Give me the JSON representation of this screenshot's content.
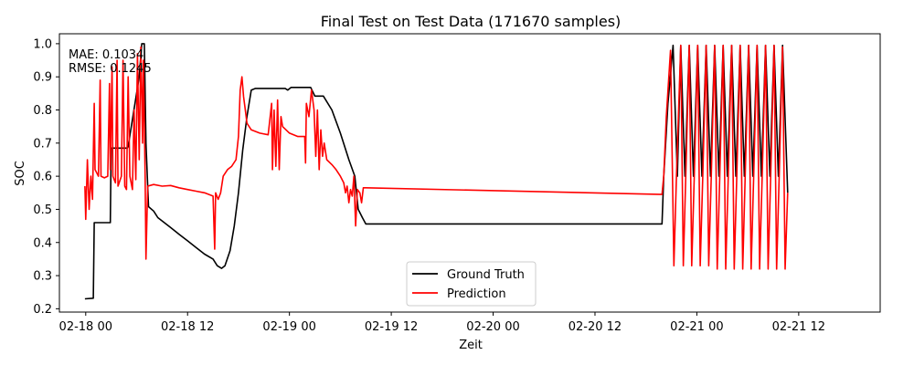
{
  "chart_data": {
    "type": "line",
    "title": "Final Test on Test Data (171670 samples)",
    "xlabel": "Zeit",
    "ylabel": "SOC",
    "x_unit": "hours",
    "xlim": [
      -3.1,
      93.6
    ],
    "ylim": [
      0.19,
      1.03
    ],
    "x_ticks": [
      {
        "label": "02-18 00",
        "value": 0
      },
      {
        "label": "02-18 12",
        "value": 12
      },
      {
        "label": "02-19 00",
        "value": 24
      },
      {
        "label": "02-19 12",
        "value": 36
      },
      {
        "label": "02-20 00",
        "value": 48
      },
      {
        "label": "02-20 12",
        "value": 60
      },
      {
        "label": "02-21 00",
        "value": 72
      },
      {
        "label": "02-21 12",
        "value": 84
      }
    ],
    "y_ticks": [
      {
        "label": "0.2",
        "value": 0.2
      },
      {
        "label": "0.3",
        "value": 0.3
      },
      {
        "label": "0.4",
        "value": 0.4
      },
      {
        "label": "0.5",
        "value": 0.5
      },
      {
        "label": "0.6",
        "value": 0.6
      },
      {
        "label": "0.7",
        "value": 0.7
      },
      {
        "label": "0.8",
        "value": 0.8
      },
      {
        "label": "0.9",
        "value": 0.9
      },
      {
        "label": "1.0",
        "value": 1.0
      }
    ],
    "grid": false,
    "legend_position": "lower center",
    "metrics": {
      "mae_text": "MAE: 0.1034",
      "rmse_text": "RMSE: 0.1245"
    },
    "series": [
      {
        "name": "Ground Truth",
        "color": "#000000",
        "points": [
          [
            -0.1,
            0.23
          ],
          [
            0.9,
            0.232
          ],
          [
            1.0,
            0.46
          ],
          [
            2.9,
            0.46
          ],
          [
            3.0,
            0.685
          ],
          [
            4.9,
            0.685
          ],
          [
            5.0,
            0.69
          ],
          [
            6.3,
            0.9
          ],
          [
            6.6,
            1.0
          ],
          [
            6.9,
            1.0
          ],
          [
            7.1,
            0.7
          ],
          [
            7.4,
            0.508
          ],
          [
            8.0,
            0.495
          ],
          [
            8.5,
            0.475
          ],
          [
            10.0,
            0.445
          ],
          [
            11.0,
            0.425
          ],
          [
            12.0,
            0.405
          ],
          [
            13.0,
            0.385
          ],
          [
            14.0,
            0.365
          ],
          [
            15.0,
            0.35
          ],
          [
            15.5,
            0.33
          ],
          [
            16.0,
            0.322
          ],
          [
            16.4,
            0.33
          ],
          [
            17.0,
            0.375
          ],
          [
            17.5,
            0.45
          ],
          [
            18.0,
            0.55
          ],
          [
            18.5,
            0.68
          ],
          [
            19.0,
            0.78
          ],
          [
            19.5,
            0.86
          ],
          [
            20.0,
            0.865
          ],
          [
            23.5,
            0.865
          ],
          [
            23.8,
            0.86
          ],
          [
            24.2,
            0.868
          ],
          [
            26.5,
            0.868
          ],
          [
            27.0,
            0.842
          ],
          [
            28.0,
            0.842
          ],
          [
            29.0,
            0.8
          ],
          [
            30.0,
            0.73
          ],
          [
            31.0,
            0.65
          ],
          [
            31.7,
            0.6
          ],
          [
            32.1,
            0.5
          ],
          [
            32.6,
            0.475
          ],
          [
            33.0,
            0.456
          ],
          [
            67.9,
            0.456
          ],
          [
            68.1,
            0.6
          ],
          [
            68.6,
            0.82
          ],
          [
            69.2,
            0.995
          ],
          [
            69.7,
            0.6
          ],
          [
            70.1,
            0.995
          ],
          [
            70.6,
            0.6
          ],
          [
            71.1,
            0.995
          ],
          [
            71.6,
            0.6
          ],
          [
            72.1,
            0.995
          ],
          [
            72.6,
            0.6
          ],
          [
            73.1,
            0.995
          ],
          [
            73.6,
            0.6
          ],
          [
            74.1,
            0.995
          ],
          [
            74.6,
            0.6
          ],
          [
            75.1,
            0.995
          ],
          [
            75.6,
            0.6
          ],
          [
            76.1,
            0.995
          ],
          [
            76.6,
            0.6
          ],
          [
            77.1,
            0.995
          ],
          [
            77.6,
            0.6
          ],
          [
            78.1,
            0.995
          ],
          [
            78.6,
            0.6
          ],
          [
            79.1,
            0.995
          ],
          [
            79.6,
            0.6
          ],
          [
            80.1,
            0.995
          ],
          [
            80.6,
            0.6
          ],
          [
            81.1,
            0.995
          ],
          [
            81.6,
            0.6
          ],
          [
            82.1,
            0.995
          ],
          [
            82.7,
            0.55
          ]
        ]
      },
      {
        "name": "Prediction",
        "color": "#ff0000",
        "points": [
          [
            -0.1,
            0.57
          ],
          [
            0.0,
            0.47
          ],
          [
            0.2,
            0.65
          ],
          [
            0.4,
            0.5
          ],
          [
            0.6,
            0.6
          ],
          [
            0.8,
            0.53
          ],
          [
            1.0,
            0.82
          ],
          [
            1.1,
            0.62
          ],
          [
            1.3,
            0.61
          ],
          [
            1.5,
            0.6
          ],
          [
            1.7,
            0.89
          ],
          [
            1.8,
            0.6
          ],
          [
            2.2,
            0.595
          ],
          [
            2.6,
            0.6
          ],
          [
            2.8,
            0.88
          ],
          [
            2.9,
            0.62
          ],
          [
            3.1,
            0.93
          ],
          [
            3.2,
            0.6
          ],
          [
            3.5,
            0.58
          ],
          [
            3.7,
            0.95
          ],
          [
            3.8,
            0.57
          ],
          [
            4.2,
            0.6
          ],
          [
            4.4,
            0.95
          ],
          [
            4.6,
            0.57
          ],
          [
            4.8,
            0.56
          ],
          [
            5.0,
            0.9
          ],
          [
            5.2,
            0.6
          ],
          [
            5.5,
            0.56
          ],
          [
            5.7,
            0.8
          ],
          [
            5.9,
            0.59
          ],
          [
            6.1,
            0.97
          ],
          [
            6.3,
            0.65
          ],
          [
            6.5,
            0.99
          ],
          [
            6.7,
            0.7
          ],
          [
            6.8,
            0.95
          ],
          [
            7.0,
            0.6
          ],
          [
            7.1,
            0.35
          ],
          [
            7.3,
            0.57
          ],
          [
            8.0,
            0.575
          ],
          [
            9.0,
            0.57
          ],
          [
            10.0,
            0.572
          ],
          [
            11.0,
            0.565
          ],
          [
            12.0,
            0.56
          ],
          [
            13.0,
            0.555
          ],
          [
            14.0,
            0.55
          ],
          [
            15.0,
            0.54
          ],
          [
            15.2,
            0.38
          ],
          [
            15.3,
            0.55
          ],
          [
            15.6,
            0.53
          ],
          [
            15.9,
            0.55
          ],
          [
            16.2,
            0.6
          ],
          [
            16.7,
            0.62
          ],
          [
            17.2,
            0.63
          ],
          [
            17.7,
            0.65
          ],
          [
            18.0,
            0.72
          ],
          [
            18.2,
            0.86
          ],
          [
            18.4,
            0.9
          ],
          [
            18.6,
            0.84
          ],
          [
            18.8,
            0.8
          ],
          [
            19.0,
            0.76
          ],
          [
            19.5,
            0.74
          ],
          [
            20.5,
            0.73
          ],
          [
            21.5,
            0.725
          ],
          [
            21.9,
            0.82
          ],
          [
            22.0,
            0.62
          ],
          [
            22.2,
            0.8
          ],
          [
            22.4,
            0.63
          ],
          [
            22.6,
            0.83
          ],
          [
            22.8,
            0.62
          ],
          [
            23.0,
            0.78
          ],
          [
            23.2,
            0.75
          ],
          [
            24.0,
            0.73
          ],
          [
            25.0,
            0.72
          ],
          [
            25.8,
            0.72
          ],
          [
            25.9,
            0.64
          ],
          [
            26.0,
            0.82
          ],
          [
            26.3,
            0.78
          ],
          [
            26.6,
            0.86
          ],
          [
            26.9,
            0.8
          ],
          [
            27.1,
            0.66
          ],
          [
            27.3,
            0.8
          ],
          [
            27.5,
            0.62
          ],
          [
            27.7,
            0.74
          ],
          [
            27.9,
            0.66
          ],
          [
            28.1,
            0.7
          ],
          [
            28.4,
            0.65
          ],
          [
            29.0,
            0.635
          ],
          [
            29.5,
            0.62
          ],
          [
            30.0,
            0.6
          ],
          [
            30.4,
            0.58
          ],
          [
            30.6,
            0.55
          ],
          [
            30.8,
            0.57
          ],
          [
            31.0,
            0.52
          ],
          [
            31.2,
            0.56
          ],
          [
            31.4,
            0.54
          ],
          [
            31.6,
            0.6
          ],
          [
            31.8,
            0.45
          ],
          [
            32.0,
            0.56
          ],
          [
            32.3,
            0.55
          ],
          [
            32.5,
            0.52
          ],
          [
            32.7,
            0.565
          ],
          [
            33.0,
            0.565
          ],
          [
            67.9,
            0.545
          ],
          [
            68.1,
            0.6
          ],
          [
            68.4,
            0.78
          ],
          [
            68.9,
            0.98
          ],
          [
            69.3,
            0.33
          ],
          [
            69.6,
            0.6
          ],
          [
            70.1,
            0.995
          ],
          [
            70.4,
            0.33
          ],
          [
            70.7,
            0.6
          ],
          [
            71.1,
            0.995
          ],
          [
            71.4,
            0.33
          ],
          [
            71.7,
            0.6
          ],
          [
            72.1,
            0.995
          ],
          [
            72.4,
            0.33
          ],
          [
            72.7,
            0.6
          ],
          [
            73.1,
            0.995
          ],
          [
            73.4,
            0.33
          ],
          [
            73.7,
            0.6
          ],
          [
            74.1,
            0.995
          ],
          [
            74.4,
            0.32
          ],
          [
            74.7,
            0.6
          ],
          [
            75.1,
            0.995
          ],
          [
            75.4,
            0.32
          ],
          [
            75.7,
            0.6
          ],
          [
            76.1,
            0.995
          ],
          [
            76.4,
            0.32
          ],
          [
            76.7,
            0.6
          ],
          [
            77.1,
            0.995
          ],
          [
            77.4,
            0.32
          ],
          [
            77.7,
            0.6
          ],
          [
            78.1,
            0.995
          ],
          [
            78.4,
            0.32
          ],
          [
            78.7,
            0.6
          ],
          [
            79.1,
            0.995
          ],
          [
            79.4,
            0.32
          ],
          [
            79.7,
            0.6
          ],
          [
            80.1,
            0.995
          ],
          [
            80.4,
            0.32
          ],
          [
            80.7,
            0.6
          ],
          [
            81.1,
            0.995
          ],
          [
            81.4,
            0.32
          ],
          [
            81.7,
            0.6
          ],
          [
            82.1,
            0.99
          ],
          [
            82.4,
            0.32
          ],
          [
            82.7,
            0.55
          ]
        ]
      }
    ]
  }
}
